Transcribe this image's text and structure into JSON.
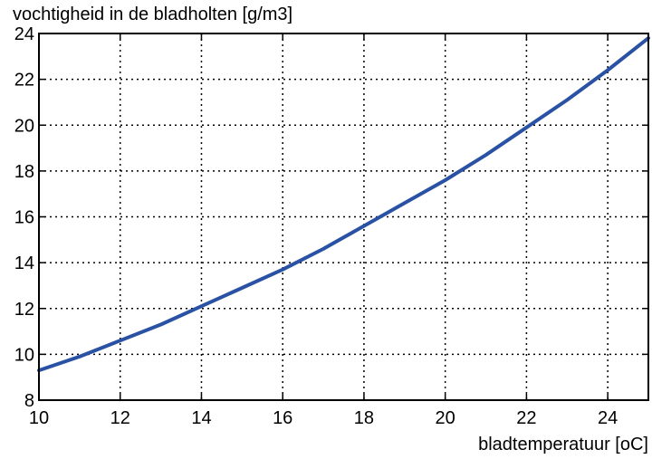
{
  "chart_data": {
    "type": "line",
    "title": "",
    "ylabel": "vochtigheid in de bladholten [g/m3]",
    "xlabel": "bladtemperatuur [oC]",
    "xlim": [
      10,
      25
    ],
    "ylim": [
      8,
      24
    ],
    "x_ticks": [
      10,
      12,
      14,
      16,
      18,
      20,
      22,
      24
    ],
    "y_ticks": [
      8,
      10,
      12,
      14,
      16,
      18,
      20,
      22,
      24
    ],
    "grid": true,
    "line_color": "#2a52a4",
    "series": [
      {
        "x": [
          10,
          11,
          12,
          13,
          14,
          15,
          16,
          17,
          18,
          19,
          20,
          21,
          22,
          23,
          24,
          25
        ],
        "y": [
          9.3,
          9.9,
          10.6,
          11.3,
          12.1,
          12.9,
          13.7,
          14.6,
          15.6,
          16.6,
          17.6,
          18.7,
          19.9,
          21.1,
          22.4,
          23.8
        ]
      }
    ]
  }
}
